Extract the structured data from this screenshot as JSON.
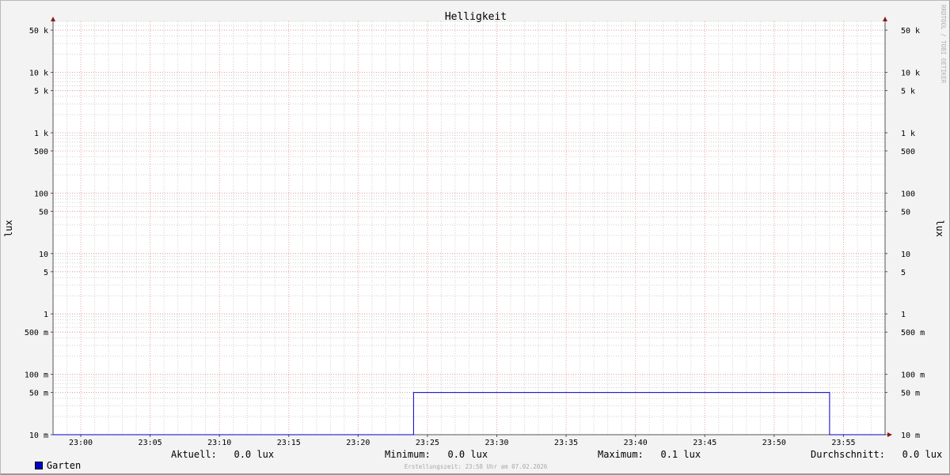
{
  "chart_data": {
    "type": "line",
    "title": "Helligkeit",
    "ylabel": "lux",
    "ylabel_right": "lux",
    "yscale": "log",
    "ylim": [
      0.01,
      70000
    ],
    "ytick_values": [
      0.01,
      0.05,
      0.1,
      0.5,
      1,
      5,
      10,
      50,
      100,
      500,
      1000,
      5000,
      10000,
      50000
    ],
    "ytick_labels": [
      "10 m",
      "50 m",
      "100 m",
      "500 m",
      "1",
      "5",
      "10",
      "50",
      "100",
      "500",
      "1 k",
      "5 k",
      "10 k",
      "50 k"
    ],
    "xlim": [
      "22:58",
      "23:58"
    ],
    "xtick_labels": [
      "23:00",
      "23:05",
      "23:10",
      "23:15",
      "23:20",
      "23:25",
      "23:30",
      "23:35",
      "23:40",
      "23:45",
      "23:50",
      "23:55"
    ],
    "grid": true,
    "series": [
      {
        "name": "Garten",
        "color": "#0000cc",
        "x": [
          "22:58",
          "23:24",
          "23:24",
          "23:54",
          "23:54",
          "23:58"
        ],
        "y": [
          0,
          0,
          0.05,
          0.05,
          0,
          0
        ]
      }
    ]
  },
  "legend": {
    "series_name": "Garten",
    "current_label": "Aktuell:",
    "current_value": "0.0 lux",
    "min_label": "Minimum:",
    "min_value": "0.0 lux",
    "max_label": "Maximum:",
    "max_value": "0.1 lux",
    "avg_label": "Durchschnitt:",
    "avg_value": "0.0 lux"
  },
  "footer": "Erstellungszeit: 23:58 Uhr am 07.02.2026",
  "watermark": "RRDTOOL / TOBI OETIKER"
}
